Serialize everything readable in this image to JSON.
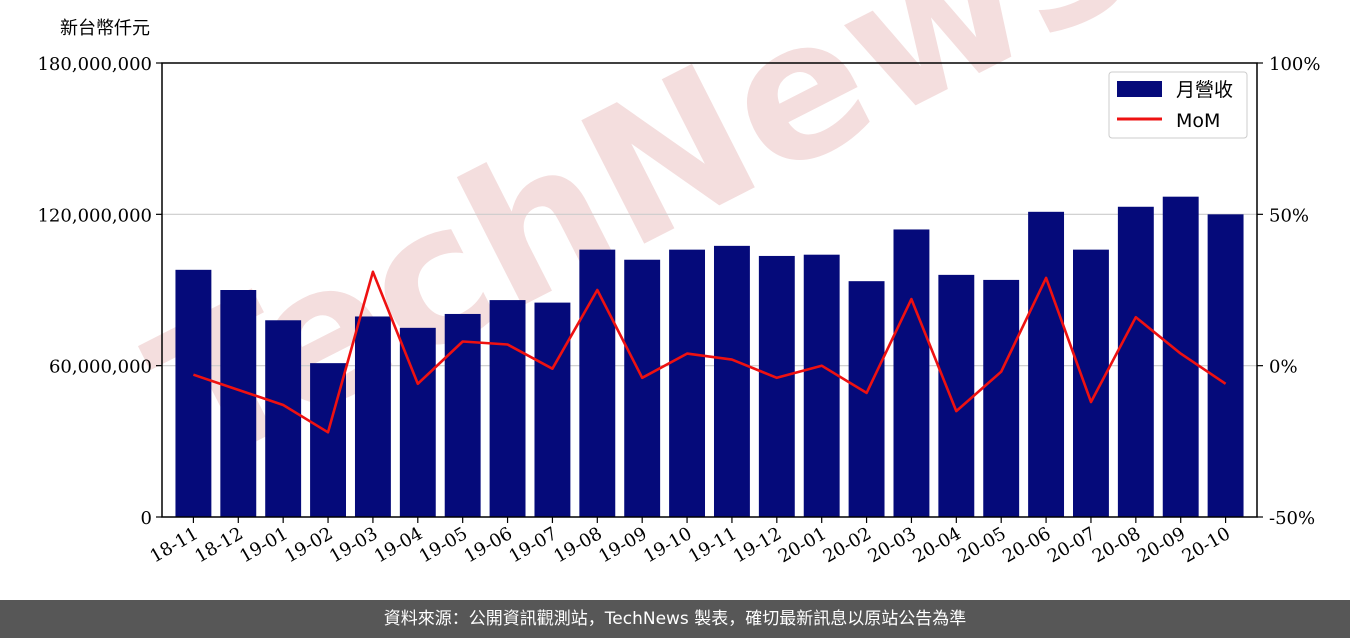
{
  "unit_label": "新台幣仟元",
  "footer_text": "資料來源：公開資訊觀測站，TechNews 製表，確切最新訊息以原站公告為準",
  "colors": {
    "bar": "#050a7a",
    "line": "#ee1111",
    "grid": "#cccccc",
    "watermark": "#f4dede",
    "footer_bg": "#575757"
  },
  "watermark": "TechNews",
  "chart_data": {
    "type": "bar",
    "categories": [
      "18-11",
      "18-12",
      "19-01",
      "19-02",
      "19-03",
      "19-04",
      "19-05",
      "19-06",
      "19-07",
      "19-08",
      "19-09",
      "19-10",
      "19-11",
      "19-12",
      "20-01",
      "20-02",
      "20-03",
      "20-04",
      "20-05",
      "20-06",
      "20-07",
      "20-08",
      "20-09",
      "20-10"
    ],
    "series": [
      {
        "name": "月營收",
        "axis": "left",
        "type": "bar",
        "values": [
          98000000,
          90000000,
          78000000,
          61000000,
          79500000,
          75000000,
          80500000,
          86000000,
          85000000,
          106000000,
          102000000,
          106000000,
          107500000,
          103500000,
          104000000,
          93500000,
          114000000,
          96000000,
          94000000,
          121000000,
          106000000,
          123000000,
          127000000,
          120000000
        ]
      },
      {
        "name": "MoM",
        "axis": "right",
        "type": "line",
        "values": [
          -3,
          -8,
          -13,
          -22,
          31,
          -6,
          8,
          7,
          -1,
          25,
          -4,
          4,
          2,
          -4,
          0,
          -9,
          22,
          -15,
          -2,
          29,
          -12,
          16,
          4,
          -6
        ]
      }
    ],
    "yleft": {
      "ylim": [
        0,
        180000000
      ],
      "ticks": [
        "0",
        "60,000,000",
        "120,000,000",
        "180,000,000"
      ]
    },
    "yright": {
      "ylim": [
        -50,
        100
      ],
      "ticks": [
        "-50%",
        "0%",
        "50%",
        "100%"
      ]
    },
    "grid": "horizontal",
    "legend": "top-right"
  }
}
